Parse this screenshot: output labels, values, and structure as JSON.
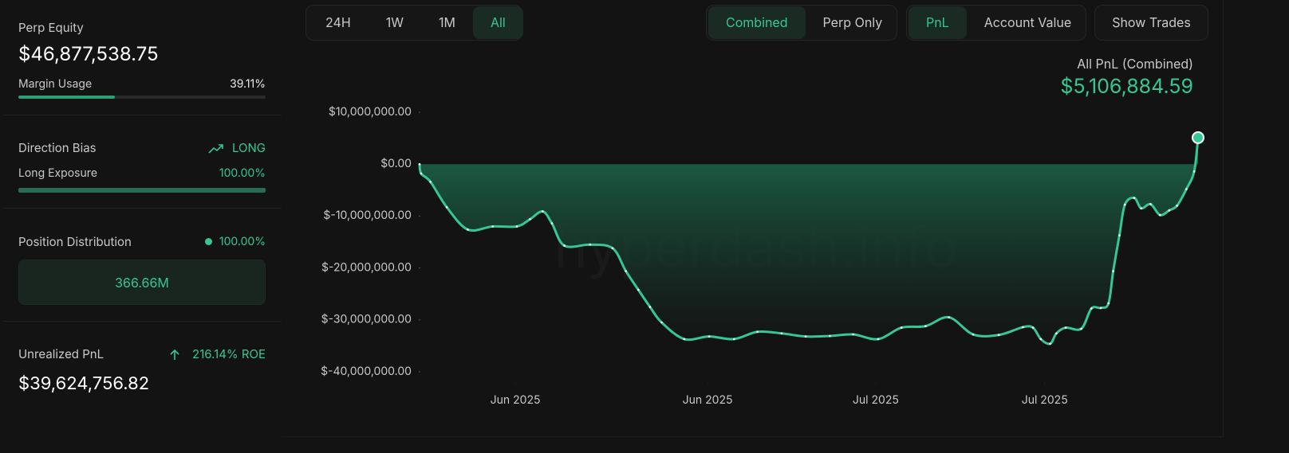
{
  "sidebar": {
    "perp_equity": {
      "label": "Perp Equity",
      "value": "$46,877,538.75"
    },
    "margin_usage": {
      "label": "Margin Usage",
      "value": 39.11,
      "value_label": "39.11%"
    },
    "direction_bias": {
      "label": "Direction Bias",
      "value": "LONG"
    },
    "long_exposure": {
      "label": "Long Exposure",
      "value": 100.0,
      "value_label": "100.00%"
    },
    "position_distribution": {
      "label": "Position Distribution",
      "value": 100.0,
      "value_label": "100.00%",
      "box": "366.66M"
    },
    "unrealized_pnl": {
      "label": "Unrealized PnL",
      "value": "$39,624,756.82",
      "roe": "216.14% ROE"
    }
  },
  "toolbar": {
    "time_ranges": [
      "24H",
      "1W",
      "1M",
      "All"
    ],
    "time_active": 3,
    "modes": [
      "Combined",
      "Perp Only"
    ],
    "mode_active": 0,
    "metrics": [
      "PnL",
      "Account Value"
    ],
    "metric_active": 0,
    "show_trades": "Show Trades"
  },
  "chart_data": {
    "type": "area",
    "title": "All PnL (Combined)",
    "subtitle": "$5,106,884.59",
    "watermark": "hyperdash.info",
    "color": "#36c893",
    "x": [
      0,
      0.2,
      1.4,
      3.5,
      6.2,
      9.4,
      12.5,
      14.2,
      15.8,
      17,
      18.6,
      21.9,
      24.8,
      26.5,
      28.1,
      29.6,
      31.1,
      34,
      37.2,
      40.4,
      43.4,
      46.5,
      49.6,
      52.7,
      55.7,
      58.9,
      61.9,
      65,
      68,
      71.1,
      74.4,
      77.5,
      78.8,
      79.8,
      81,
      81.8,
      83,
      85,
      86.3,
      87.5,
      88.5,
      89.1,
      89.9,
      90.6,
      91.8,
      92.7,
      93.9,
      95.1,
      96.3,
      97.3,
      98.5,
      99.5,
      100
    ],
    "values": [
      0,
      -1800000,
      -3400000,
      -8300000,
      -12600000,
      -12000000,
      -12000000,
      -10600000,
      -9100000,
      -11400000,
      -15700000,
      -15500000,
      -16200000,
      -20600000,
      -24200000,
      -27500000,
      -30500000,
      -33700000,
      -33200000,
      -33700000,
      -32300000,
      -32600000,
      -33200000,
      -33100000,
      -32800000,
      -33700000,
      -31500000,
      -31200000,
      -29500000,
      -32800000,
      -32900000,
      -31400000,
      -31500000,
      -33700000,
      -34600000,
      -32600000,
      -31500000,
      -31700000,
      -27800000,
      -27700000,
      -26800000,
      -20600000,
      -13700000,
      -7800000,
      -6500000,
      -8500000,
      -7700000,
      -9800000,
      -8900000,
      -8000000,
      -4800000,
      -1400000,
      5106884.59
    ],
    "xlim": [
      0,
      100
    ],
    "xticks": [
      {
        "value": 12.3,
        "label": "Jun 2025"
      },
      {
        "value": 37.0,
        "label": "Jun 2025"
      },
      {
        "value": 58.6,
        "label": "Jul 2025"
      },
      {
        "value": 80.3,
        "label": "Jul 2025"
      }
    ],
    "ylim": [
      -40000000,
      10000000
    ],
    "yticks": [
      {
        "value": 10000000,
        "label": "$10,000,000.00"
      },
      {
        "value": 0,
        "label": "$0.00"
      },
      {
        "value": -10000000,
        "label": "$-10,000,000.00"
      },
      {
        "value": -20000000,
        "label": "$-20,000,000.00"
      },
      {
        "value": -30000000,
        "label": "$-30,000,000.00"
      },
      {
        "value": -40000000,
        "label": "$-40,000,000.00"
      }
    ]
  }
}
